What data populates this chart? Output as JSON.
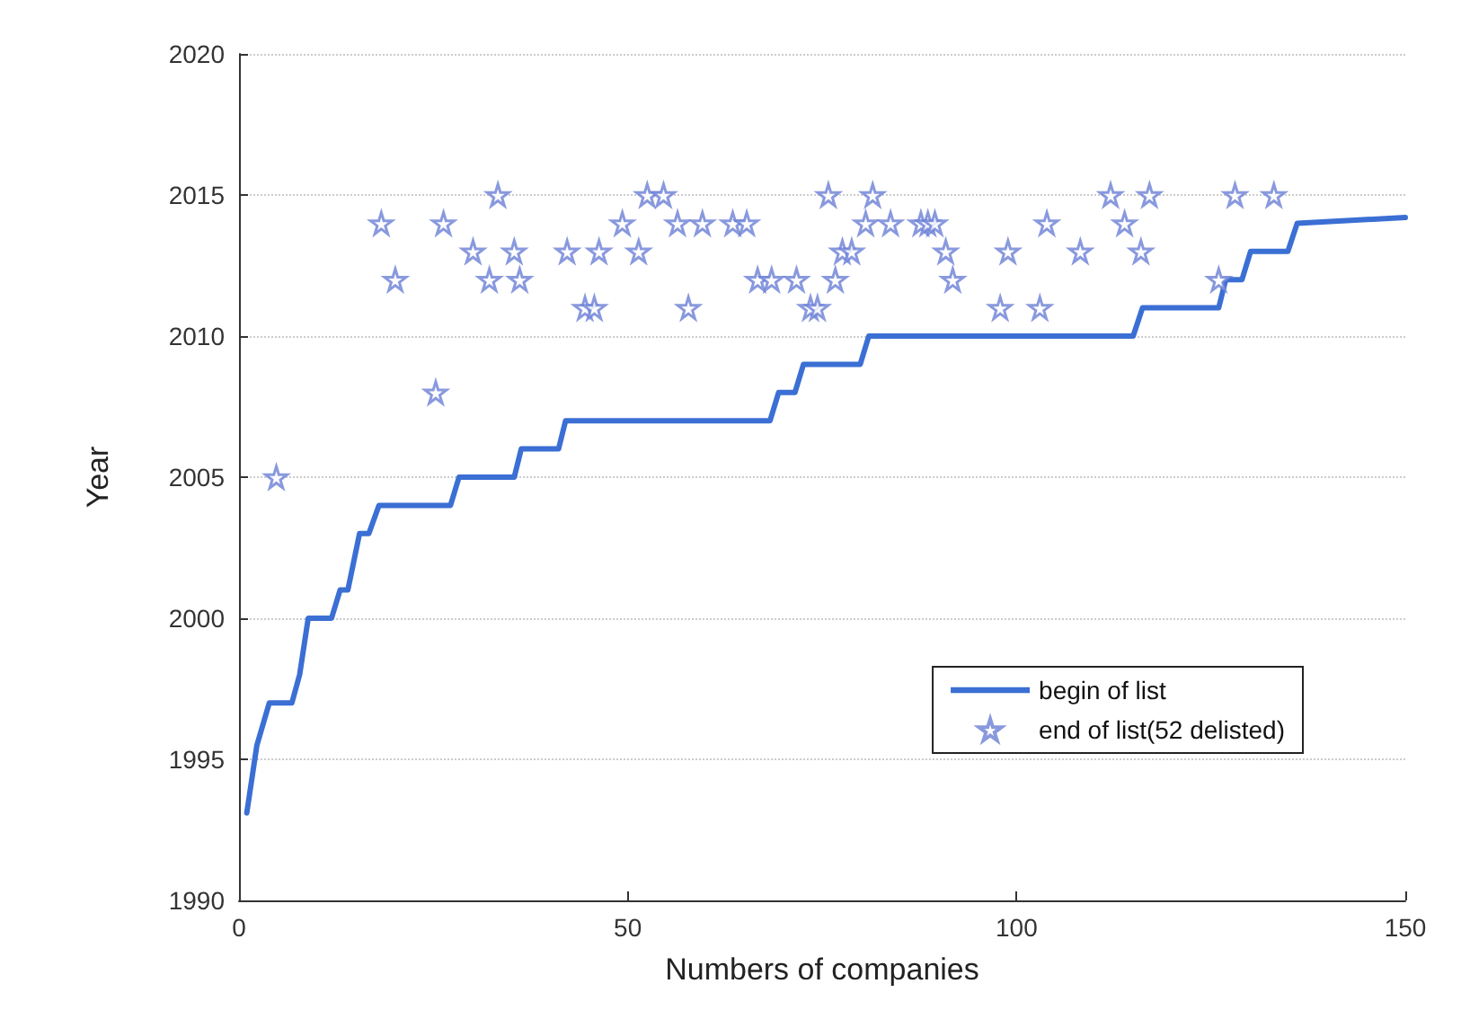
{
  "chart_data": {
    "type": "line",
    "xlabel": "Numbers of companies",
    "ylabel": "Year",
    "xlim": [
      0,
      150
    ],
    "xticks": [
      0,
      50,
      100,
      150
    ],
    "ylim": [
      1990,
      2020
    ],
    "yticks": [
      1990,
      1995,
      2000,
      2005,
      2010,
      2015,
      2020
    ],
    "grid": "y",
    "legend": "bottom right",
    "series": [
      {
        "name": "begin of list",
        "color": "#3b6fd4",
        "marker": "none",
        "line_style": "solid",
        "x": [
          1,
          2.3,
          3.9,
          6.8,
          7.8,
          8.9,
          11.9,
          13,
          14,
          15.5,
          16.7,
          18,
          27.2,
          28.3,
          35.4,
          36.3,
          41.1,
          42,
          68.3,
          69.4,
          71.5,
          72.6,
          79.9,
          81,
          115,
          116.2,
          126,
          126.9,
          129,
          130.1,
          134.9,
          136.1,
          150
        ],
        "values": [
          1993.1,
          1995.5,
          1997,
          1997,
          1998,
          2000,
          2000,
          2001,
          2001,
          2003,
          2003,
          2004,
          2004,
          2005,
          2005,
          2006,
          2006,
          2007,
          2007,
          2008,
          2008,
          2009,
          2009,
          2010,
          2010,
          2011,
          2011,
          2012,
          2012,
          2013,
          2013,
          2014,
          2014.2
        ]
      },
      {
        "name": "end of list(52 delisted)",
        "type": "scatter",
        "color": "#6b7fd6",
        "marker": "star",
        "x": [
          4.8,
          18.3,
          20.1,
          25.3,
          26.3,
          30.1,
          32.2,
          33.3,
          35.4,
          36.1,
          42.2,
          44.5,
          45.7,
          46.3,
          49.3,
          51.4,
          52.5,
          54.6,
          56.4,
          57.8,
          59.6,
          63.5,
          65.3,
          66.7,
          68.5,
          71.7,
          73.5,
          74.4,
          75.8,
          76.7,
          77.6,
          78.8,
          80.6,
          81.5,
          83.8,
          87.7,
          88.6,
          89.5,
          90.9,
          91.8,
          97.9,
          98.9,
          103,
          103.9,
          108.2,
          112.1,
          113.9,
          116,
          117.1,
          126,
          128.1,
          133.1
        ],
        "values": [
          2005,
          2014,
          2012,
          2008,
          2014,
          2013,
          2012,
          2015,
          2013,
          2012,
          2013,
          2011,
          2011,
          2013,
          2014,
          2013,
          2015,
          2015,
          2014,
          2011,
          2014,
          2014,
          2014,
          2012,
          2012,
          2012,
          2011,
          2011,
          2015,
          2012,
          2013,
          2013,
          2014,
          2015,
          2014,
          2014,
          2014,
          2014,
          2013,
          2012,
          2011,
          2013,
          2011,
          2014,
          2013,
          2015,
          2014,
          2013,
          2015,
          2012,
          2015,
          2015
        ]
      }
    ]
  }
}
